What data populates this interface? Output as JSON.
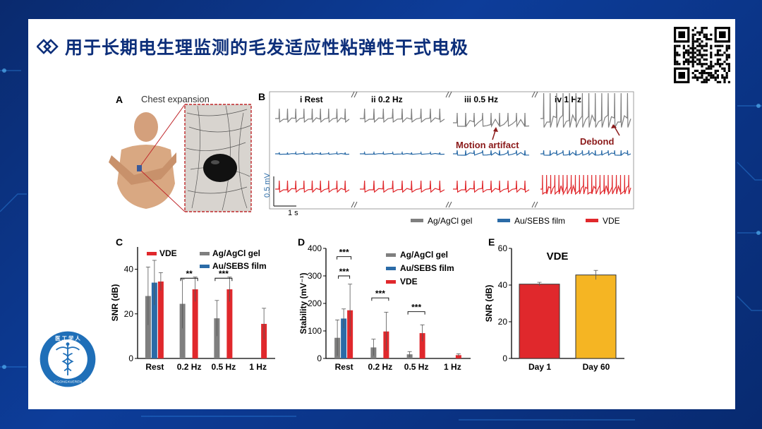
{
  "slide": {
    "title": "用于长期电生理监测的毛发适应性粘弹性干式电极",
    "title_icon": "double-diamond-icon",
    "qr_icon": "qr-code-icon",
    "logo": {
      "icon": "caduceus-seal-icon",
      "top_text": "医 工 学 人",
      "bottom_text": "YIGONGXUEREN"
    }
  },
  "figure": {
    "panel_a": {
      "label": "A",
      "title": "Chest expansion"
    },
    "panel_b": {
      "label": "B",
      "conditions": [
        "i Rest",
        "ii 0.2 Hz",
        "iii 0.5 Hz",
        "iv 1 Hz"
      ],
      "annotations": {
        "motion_artifact": "Motion artifact",
        "debond": "Debond"
      },
      "scale_y": "0.5 mV",
      "scale_x": "1 s",
      "legend": [
        {
          "name": "Ag/AgCl gel",
          "color": "#7f7f7f"
        },
        {
          "name": "Au/SEBS film",
          "color": "#2b6ba7"
        },
        {
          "name": "VDE",
          "color": "#e0282c"
        }
      ]
    },
    "colors": {
      "agagcl": "#7f7f7f",
      "ausebs": "#2b6ba7",
      "vde": "#e0282c",
      "day60": "#f5b523"
    }
  },
  "chart_data": [
    {
      "panel": "C",
      "type": "bar",
      "categories": [
        "Rest",
        "0.2 Hz",
        "0.5 Hz",
        "1 Hz"
      ],
      "ylabel": "SNR (dB)",
      "ylim": [
        0,
        50
      ],
      "yticks": [
        0,
        20,
        40
      ],
      "series": [
        {
          "name": "Ag/AgCl gel",
          "values": [
            28,
            24.5,
            18,
            null
          ],
          "errors": [
            13,
            11,
            8,
            null
          ]
        },
        {
          "name": "Au/SEBS film",
          "values": [
            34,
            null,
            null,
            null
          ],
          "errors": [
            10,
            null,
            null,
            null
          ]
        },
        {
          "name": "VDE",
          "values": [
            34.5,
            31,
            31,
            15.5
          ],
          "errors": [
            4,
            5.5,
            5.5,
            7
          ]
        }
      ],
      "significance": [
        {
          "category": "0.2 Hz",
          "label": "**"
        },
        {
          "category": "0.5 Hz",
          "label": "***"
        }
      ],
      "legend_position": "top"
    },
    {
      "panel": "D",
      "type": "bar",
      "categories": [
        "Rest",
        "0.2 Hz",
        "0.5 Hz",
        "1 Hz"
      ],
      "ylabel": "Stability (mV⁻¹)",
      "ylim": [
        0,
        400
      ],
      "yticks": [
        0,
        100,
        200,
        300,
        400
      ],
      "series": [
        {
          "name": "Ag/AgCl gel",
          "values": [
            75,
            40,
            15,
            null
          ],
          "errors": [
            65,
            30,
            10,
            null
          ]
        },
        {
          "name": "Au/SEBS film",
          "values": [
            145,
            null,
            null,
            null
          ],
          "errors": [
            35,
            null,
            null,
            null
          ]
        },
        {
          "name": "VDE",
          "values": [
            175,
            98,
            92,
            12
          ],
          "errors": [
            95,
            70,
            30,
            5
          ]
        }
      ],
      "significance": [
        {
          "category": "Rest",
          "label": "***"
        },
        {
          "category": "Rest",
          "label": "***"
        },
        {
          "category": "0.2 Hz",
          "label": "***"
        },
        {
          "category": "0.5 Hz",
          "label": "***"
        }
      ],
      "legend_position": "top-right"
    },
    {
      "panel": "E",
      "type": "bar",
      "title": "VDE",
      "categories": [
        "Day 1",
        "Day 60"
      ],
      "values": [
        40.5,
        45.5
      ],
      "errors": [
        1,
        2.5
      ],
      "ylabel": "SNR (dB)",
      "ylim": [
        0,
        60
      ],
      "yticks": [
        0,
        20,
        40,
        60
      ]
    }
  ]
}
